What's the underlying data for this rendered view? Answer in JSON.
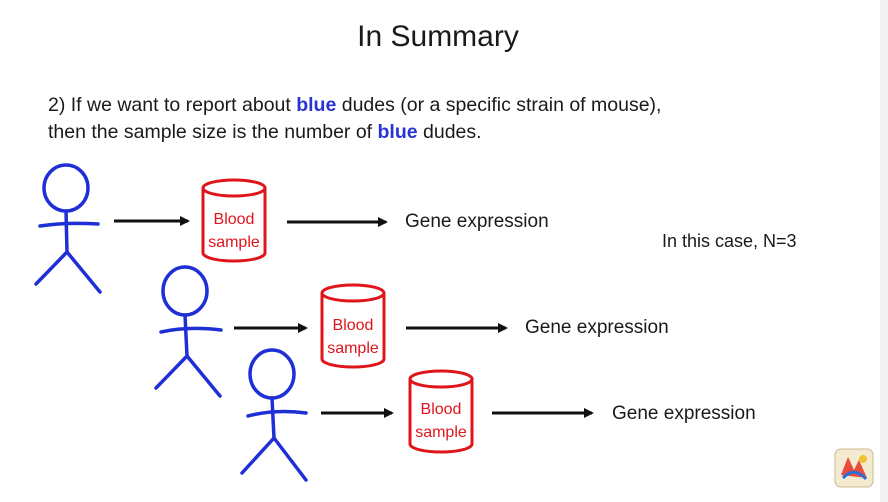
{
  "slide": {
    "title": "In Summary",
    "paragraph": {
      "p1": "2) If we want to report about ",
      "hl1": "blue",
      "p2": " dudes (or a specific strain of mouse), then the sample size is the number of ",
      "hl2": "blue",
      "p3": " dudes."
    },
    "case_text": "In this case, N=3",
    "rows": [
      {
        "can_line1": "Blood",
        "can_line2": "sample",
        "output": "Gene expression"
      },
      {
        "can_line1": "Blood",
        "can_line2": "sample",
        "output": "Gene expression"
      },
      {
        "can_line1": "Blood",
        "can_line2": "sample",
        "output": "Gene expression"
      }
    ]
  },
  "colors": {
    "figure_blue": "#1f2fd6",
    "can_red": "#e0151b",
    "highlight_blue": "#2a34d6"
  },
  "icons": {
    "figure": "stick-figure",
    "can": "cylinder",
    "arrow": "right-arrow",
    "logo": "statquest-logo"
  }
}
